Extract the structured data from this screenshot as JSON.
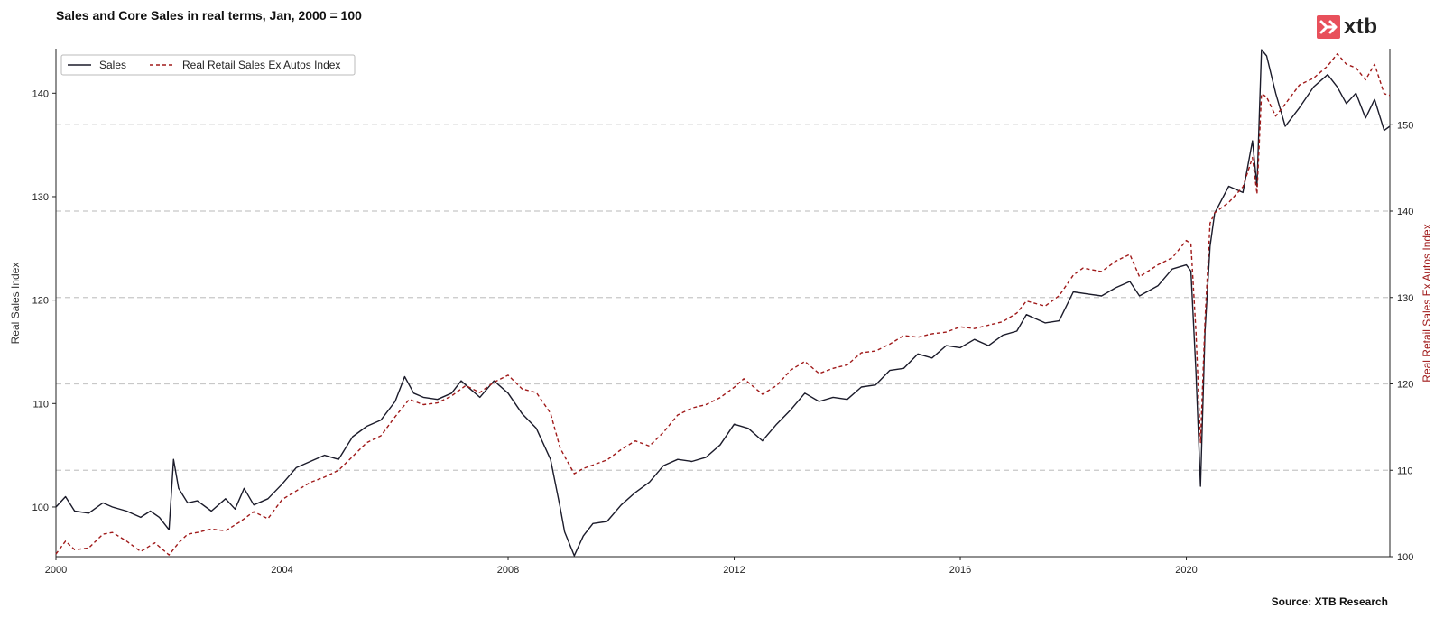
{
  "header": {
    "title": "Sales and Core Sales in real terms, Jan, 2000 = 100"
  },
  "logo": {
    "text": "xtb",
    "color": "#e8505b"
  },
  "footer": {
    "source": "Source: XTB Research"
  },
  "chart_data": {
    "type": "line",
    "title": "Sales and Core Sales in real terms, Jan, 2000 = 100",
    "xlabel": "",
    "ylabel": "Real Sales Index",
    "y2label": "Real Retail Sales Ex Autos Index",
    "x_ticks": [
      "2000",
      "2004",
      "2008",
      "2012",
      "2016",
      "2020"
    ],
    "y_ticks": [
      "100",
      "110",
      "120",
      "130",
      "140"
    ],
    "y2_ticks": [
      "100",
      "110",
      "120",
      "130",
      "140",
      "150"
    ],
    "xlim": [
      2000,
      2023.6
    ],
    "ylim": [
      95.2,
      144.3
    ],
    "y2lim": [
      100,
      158.8
    ],
    "grid": "horizontal dashed on right axis",
    "legend_position": "top-left",
    "series": [
      {
        "name": "Sales",
        "axis": "left",
        "color": "#1b1b2a",
        "style": "solid",
        "points": [
          [
            2000.0,
            100.0
          ],
          [
            2000.17,
            101.0
          ],
          [
            2000.33,
            99.6
          ],
          [
            2000.58,
            99.4
          ],
          [
            2000.83,
            100.4
          ],
          [
            2001.0,
            100.0
          ],
          [
            2001.25,
            99.6
          ],
          [
            2001.5,
            99.0
          ],
          [
            2001.67,
            99.6
          ],
          [
            2001.83,
            99.0
          ],
          [
            2002.0,
            97.8
          ],
          [
            2002.08,
            104.6
          ],
          [
            2002.17,
            101.8
          ],
          [
            2002.33,
            100.4
          ],
          [
            2002.5,
            100.6
          ],
          [
            2002.75,
            99.6
          ],
          [
            2003.0,
            100.8
          ],
          [
            2003.17,
            99.8
          ],
          [
            2003.33,
            101.8
          ],
          [
            2003.5,
            100.2
          ],
          [
            2003.75,
            100.8
          ],
          [
            2004.0,
            102.2
          ],
          [
            2004.25,
            103.8
          ],
          [
            2004.5,
            104.4
          ],
          [
            2004.75,
            105.0
          ],
          [
            2005.0,
            104.6
          ],
          [
            2005.25,
            106.8
          ],
          [
            2005.5,
            107.8
          ],
          [
            2005.75,
            108.4
          ],
          [
            2006.0,
            110.2
          ],
          [
            2006.17,
            112.6
          ],
          [
            2006.33,
            111.0
          ],
          [
            2006.5,
            110.6
          ],
          [
            2006.75,
            110.4
          ],
          [
            2007.0,
            111.0
          ],
          [
            2007.17,
            112.2
          ],
          [
            2007.33,
            111.4
          ],
          [
            2007.5,
            110.6
          ],
          [
            2007.75,
            112.2
          ],
          [
            2008.0,
            111.0
          ],
          [
            2008.25,
            109.0
          ],
          [
            2008.5,
            107.6
          ],
          [
            2008.75,
            104.6
          ],
          [
            2008.92,
            100.0
          ],
          [
            2009.0,
            97.6
          ],
          [
            2009.17,
            95.3
          ],
          [
            2009.33,
            97.2
          ],
          [
            2009.5,
            98.4
          ],
          [
            2009.75,
            98.6
          ],
          [
            2010.0,
            100.2
          ],
          [
            2010.25,
            101.4
          ],
          [
            2010.5,
            102.4
          ],
          [
            2010.75,
            104.0
          ],
          [
            2011.0,
            104.6
          ],
          [
            2011.25,
            104.4
          ],
          [
            2011.5,
            104.8
          ],
          [
            2011.75,
            106.0
          ],
          [
            2012.0,
            108.0
          ],
          [
            2012.25,
            107.6
          ],
          [
            2012.5,
            106.4
          ],
          [
            2012.75,
            108.0
          ],
          [
            2013.0,
            109.4
          ],
          [
            2013.25,
            111.0
          ],
          [
            2013.5,
            110.2
          ],
          [
            2013.75,
            110.6
          ],
          [
            2014.0,
            110.4
          ],
          [
            2014.25,
            111.6
          ],
          [
            2014.5,
            111.8
          ],
          [
            2014.75,
            113.2
          ],
          [
            2015.0,
            113.4
          ],
          [
            2015.25,
            114.8
          ],
          [
            2015.5,
            114.4
          ],
          [
            2015.75,
            115.6
          ],
          [
            2016.0,
            115.4
          ],
          [
            2016.25,
            116.2
          ],
          [
            2016.5,
            115.6
          ],
          [
            2016.75,
            116.6
          ],
          [
            2017.0,
            117.0
          ],
          [
            2017.17,
            118.6
          ],
          [
            2017.5,
            117.8
          ],
          [
            2017.75,
            118.0
          ],
          [
            2018.0,
            120.8
          ],
          [
            2018.25,
            120.6
          ],
          [
            2018.5,
            120.4
          ],
          [
            2018.75,
            121.2
          ],
          [
            2019.0,
            121.8
          ],
          [
            2019.17,
            120.4
          ],
          [
            2019.5,
            121.4
          ],
          [
            2019.75,
            123.0
          ],
          [
            2020.0,
            123.4
          ],
          [
            2020.08,
            122.8
          ],
          [
            2020.17,
            113.0
          ],
          [
            2020.25,
            102.0
          ],
          [
            2020.33,
            117.0
          ],
          [
            2020.42,
            125.2
          ],
          [
            2020.5,
            128.4
          ],
          [
            2020.75,
            131.0
          ],
          [
            2021.0,
            130.4
          ],
          [
            2021.17,
            135.4
          ],
          [
            2021.25,
            131.0
          ],
          [
            2021.33,
            144.2
          ],
          [
            2021.42,
            143.6
          ],
          [
            2021.58,
            140.0
          ],
          [
            2021.75,
            136.8
          ],
          [
            2022.0,
            138.6
          ],
          [
            2022.25,
            140.6
          ],
          [
            2022.5,
            141.8
          ],
          [
            2022.67,
            140.6
          ],
          [
            2022.83,
            139.0
          ],
          [
            2023.0,
            140.0
          ],
          [
            2023.17,
            137.6
          ],
          [
            2023.33,
            139.4
          ],
          [
            2023.5,
            136.4
          ],
          [
            2023.6,
            136.8
          ]
        ]
      },
      {
        "name": "Real Retail Sales Ex Autos Index",
        "axis": "right",
        "color": "#a01a1a",
        "style": "dashed",
        "points": [
          [
            2000.0,
            100.3
          ],
          [
            2000.17,
            101.8
          ],
          [
            2000.33,
            100.8
          ],
          [
            2000.58,
            101.0
          ],
          [
            2000.83,
            102.6
          ],
          [
            2001.0,
            102.8
          ],
          [
            2001.25,
            101.8
          ],
          [
            2001.5,
            100.6
          ],
          [
            2001.75,
            101.6
          ],
          [
            2002.0,
            100.2
          ],
          [
            2002.17,
            101.6
          ],
          [
            2002.33,
            102.6
          ],
          [
            2002.5,
            102.8
          ],
          [
            2002.75,
            103.2
          ],
          [
            2003.0,
            103.0
          ],
          [
            2003.25,
            104.0
          ],
          [
            2003.5,
            105.2
          ],
          [
            2003.75,
            104.4
          ],
          [
            2004.0,
            106.6
          ],
          [
            2004.25,
            107.6
          ],
          [
            2004.5,
            108.6
          ],
          [
            2004.75,
            109.2
          ],
          [
            2005.0,
            110.0
          ],
          [
            2005.25,
            111.6
          ],
          [
            2005.5,
            113.2
          ],
          [
            2005.75,
            114.0
          ],
          [
            2006.0,
            116.2
          ],
          [
            2006.25,
            118.2
          ],
          [
            2006.5,
            117.6
          ],
          [
            2006.75,
            117.8
          ],
          [
            2007.0,
            118.6
          ],
          [
            2007.25,
            119.8
          ],
          [
            2007.5,
            119.0
          ],
          [
            2007.75,
            120.2
          ],
          [
            2008.0,
            121.0
          ],
          [
            2008.25,
            119.4
          ],
          [
            2008.5,
            119.0
          ],
          [
            2008.75,
            116.6
          ],
          [
            2008.92,
            112.6
          ],
          [
            2009.0,
            111.6
          ],
          [
            2009.17,
            109.6
          ],
          [
            2009.33,
            110.2
          ],
          [
            2009.5,
            110.6
          ],
          [
            2009.75,
            111.2
          ],
          [
            2010.0,
            112.4
          ],
          [
            2010.25,
            113.4
          ],
          [
            2010.5,
            112.8
          ],
          [
            2010.75,
            114.4
          ],
          [
            2011.0,
            116.4
          ],
          [
            2011.25,
            117.2
          ],
          [
            2011.5,
            117.6
          ],
          [
            2011.75,
            118.4
          ],
          [
            2012.0,
            119.6
          ],
          [
            2012.17,
            120.6
          ],
          [
            2012.5,
            118.8
          ],
          [
            2012.75,
            119.8
          ],
          [
            2013.0,
            121.6
          ],
          [
            2013.25,
            122.6
          ],
          [
            2013.5,
            121.2
          ],
          [
            2013.75,
            121.8
          ],
          [
            2014.0,
            122.2
          ],
          [
            2014.25,
            123.6
          ],
          [
            2014.5,
            123.8
          ],
          [
            2014.75,
            124.6
          ],
          [
            2015.0,
            125.6
          ],
          [
            2015.25,
            125.4
          ],
          [
            2015.5,
            125.8
          ],
          [
            2015.75,
            126.0
          ],
          [
            2016.0,
            126.6
          ],
          [
            2016.25,
            126.4
          ],
          [
            2016.5,
            126.8
          ],
          [
            2016.75,
            127.2
          ],
          [
            2017.0,
            128.2
          ],
          [
            2017.17,
            129.6
          ],
          [
            2017.5,
            129.0
          ],
          [
            2017.75,
            130.2
          ],
          [
            2018.0,
            132.6
          ],
          [
            2018.17,
            133.4
          ],
          [
            2018.5,
            133.0
          ],
          [
            2018.75,
            134.2
          ],
          [
            2019.0,
            135.0
          ],
          [
            2019.17,
            132.4
          ],
          [
            2019.5,
            133.8
          ],
          [
            2019.75,
            134.6
          ],
          [
            2020.0,
            136.6
          ],
          [
            2020.08,
            136.2
          ],
          [
            2020.17,
            126.0
          ],
          [
            2020.25,
            113.2
          ],
          [
            2020.33,
            127.4
          ],
          [
            2020.42,
            138.6
          ],
          [
            2020.5,
            139.8
          ],
          [
            2020.75,
            141.0
          ],
          [
            2021.0,
            142.8
          ],
          [
            2021.17,
            146.2
          ],
          [
            2021.25,
            142.0
          ],
          [
            2021.33,
            153.6
          ],
          [
            2021.42,
            153.2
          ],
          [
            2021.58,
            151.0
          ],
          [
            2021.75,
            152.4
          ],
          [
            2022.0,
            154.6
          ],
          [
            2022.25,
            155.4
          ],
          [
            2022.5,
            156.8
          ],
          [
            2022.67,
            158.2
          ],
          [
            2022.83,
            157.0
          ],
          [
            2023.0,
            156.6
          ],
          [
            2023.17,
            155.2
          ],
          [
            2023.33,
            157.0
          ],
          [
            2023.5,
            153.6
          ],
          [
            2023.6,
            153.4
          ]
        ]
      }
    ]
  }
}
